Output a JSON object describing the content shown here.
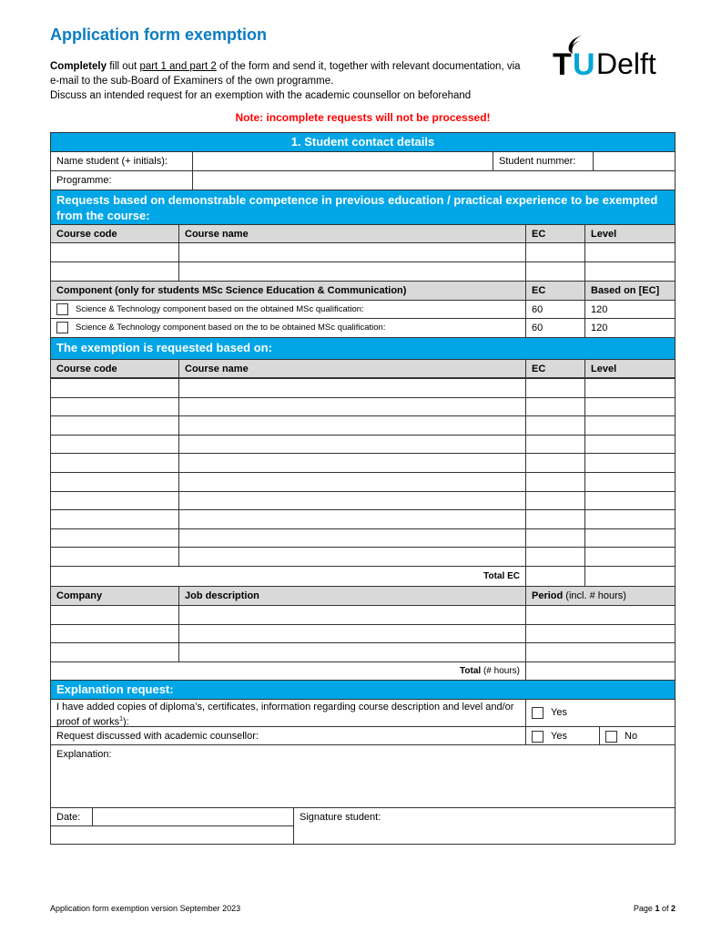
{
  "title": "Application form exemption",
  "intro": {
    "bold": "Completely",
    "t1": " fill out ",
    "underline": "part 1 and part 2",
    "t2": " of the form and send it, together with relevant documentation, via e-mail to the sub-Board of Examiners of the own programme.",
    "line3": "Discuss an intended request for an exemption with the academic counsellor on beforehand"
  },
  "note": "Note: incomplete requests will not be processed!",
  "logo": {
    "text_t": "T",
    "text_u": "U",
    "text_delft": "Delft",
    "colors": {
      "black": "#000000",
      "blue": "#00a6d6"
    }
  },
  "colors": {
    "accent": "#00a6e6",
    "header_gray": "#d9d9d9",
    "note": "#ff0000",
    "title": "#0a7cc1"
  },
  "section1": {
    "title": "1.   Student contact details",
    "name_label": "Name student (+ initials):",
    "student_nr_label": "Student nummer:",
    "programme_label": "Programme:"
  },
  "section2": {
    "title": "Requests based on demonstrable competence in previous education / practical experience to be exempted from the course:",
    "headers": [
      "Course code",
      "Course name",
      "EC",
      "Level"
    ],
    "component_header": "Component (only for students MSc Science Education & Communication)",
    "component_ec": "EC",
    "component_based": "Based on [EC]",
    "components": [
      {
        "label": "Science & Technology component based on the obtained MSc qualification:",
        "ec": "60",
        "based": "120"
      },
      {
        "label": "Science & Technology component based on the to be obtained MSc qualification:",
        "ec": "60",
        "based": "120"
      }
    ]
  },
  "section3": {
    "title": "The exemption is requested based on:",
    "headers": [
      "Course code",
      "Course name",
      "EC",
      "Level"
    ],
    "total_ec": "Total EC",
    "work_headers": {
      "company": "Company",
      "job": "Job description",
      "period_bold": "Period",
      "period_rest": " (incl. # hours)"
    },
    "total_hours_bold": "Total",
    "total_hours_rest": " (# hours)"
  },
  "section4": {
    "title": "Explanation request:",
    "copies_label": "I have added copies of diploma’s, certificates, information regarding course description and level and/or proof of works",
    "copies_sup": "1",
    "copies_end": "):",
    "yes": "Yes",
    "no": "No",
    "discussed_label": "Request discussed with academic counsellor:",
    "explanation_label": "Explanation:",
    "date_label": "Date:",
    "signature_label": "Signature student:"
  },
  "footer": {
    "left": "Application form exemption version September 2023",
    "page_prefix": "Page ",
    "page": "1",
    "of": " of ",
    "total": "2"
  }
}
